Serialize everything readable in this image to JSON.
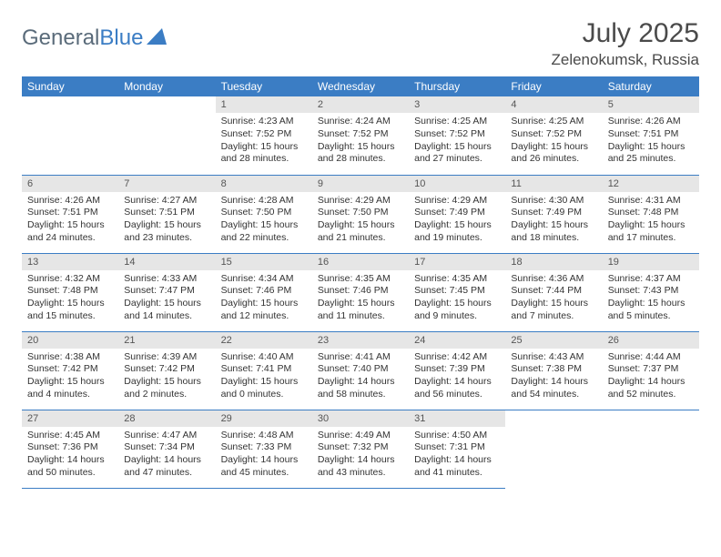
{
  "colors": {
    "header_bg": "#3b7dc4",
    "header_text": "#ffffff",
    "daynum_bg": "#e6e6e6",
    "daynum_text": "#555555",
    "body_text": "#333333",
    "divider": "#3b7dc4",
    "logo_gray": "#5a6b7a",
    "logo_blue": "#3b7dc4"
  },
  "logo": {
    "text1": "General",
    "text2": "Blue"
  },
  "title": "July 2025",
  "location": "Zelenokumsk, Russia",
  "weekdays": [
    "Sunday",
    "Monday",
    "Tuesday",
    "Wednesday",
    "Thursday",
    "Friday",
    "Saturday"
  ],
  "weeks": [
    [
      null,
      null,
      {
        "n": "1",
        "sr": "4:23 AM",
        "ss": "7:52 PM",
        "dl": "15 hours and 28 minutes."
      },
      {
        "n": "2",
        "sr": "4:24 AM",
        "ss": "7:52 PM",
        "dl": "15 hours and 28 minutes."
      },
      {
        "n": "3",
        "sr": "4:25 AM",
        "ss": "7:52 PM",
        "dl": "15 hours and 27 minutes."
      },
      {
        "n": "4",
        "sr": "4:25 AM",
        "ss": "7:52 PM",
        "dl": "15 hours and 26 minutes."
      },
      {
        "n": "5",
        "sr": "4:26 AM",
        "ss": "7:51 PM",
        "dl": "15 hours and 25 minutes."
      }
    ],
    [
      {
        "n": "6",
        "sr": "4:26 AM",
        "ss": "7:51 PM",
        "dl": "15 hours and 24 minutes."
      },
      {
        "n": "7",
        "sr": "4:27 AM",
        "ss": "7:51 PM",
        "dl": "15 hours and 23 minutes."
      },
      {
        "n": "8",
        "sr": "4:28 AM",
        "ss": "7:50 PM",
        "dl": "15 hours and 22 minutes."
      },
      {
        "n": "9",
        "sr": "4:29 AM",
        "ss": "7:50 PM",
        "dl": "15 hours and 21 minutes."
      },
      {
        "n": "10",
        "sr": "4:29 AM",
        "ss": "7:49 PM",
        "dl": "15 hours and 19 minutes."
      },
      {
        "n": "11",
        "sr": "4:30 AM",
        "ss": "7:49 PM",
        "dl": "15 hours and 18 minutes."
      },
      {
        "n": "12",
        "sr": "4:31 AM",
        "ss": "7:48 PM",
        "dl": "15 hours and 17 minutes."
      }
    ],
    [
      {
        "n": "13",
        "sr": "4:32 AM",
        "ss": "7:48 PM",
        "dl": "15 hours and 15 minutes."
      },
      {
        "n": "14",
        "sr": "4:33 AM",
        "ss": "7:47 PM",
        "dl": "15 hours and 14 minutes."
      },
      {
        "n": "15",
        "sr": "4:34 AM",
        "ss": "7:46 PM",
        "dl": "15 hours and 12 minutes."
      },
      {
        "n": "16",
        "sr": "4:35 AM",
        "ss": "7:46 PM",
        "dl": "15 hours and 11 minutes."
      },
      {
        "n": "17",
        "sr": "4:35 AM",
        "ss": "7:45 PM",
        "dl": "15 hours and 9 minutes."
      },
      {
        "n": "18",
        "sr": "4:36 AM",
        "ss": "7:44 PM",
        "dl": "15 hours and 7 minutes."
      },
      {
        "n": "19",
        "sr": "4:37 AM",
        "ss": "7:43 PM",
        "dl": "15 hours and 5 minutes."
      }
    ],
    [
      {
        "n": "20",
        "sr": "4:38 AM",
        "ss": "7:42 PM",
        "dl": "15 hours and 4 minutes."
      },
      {
        "n": "21",
        "sr": "4:39 AM",
        "ss": "7:42 PM",
        "dl": "15 hours and 2 minutes."
      },
      {
        "n": "22",
        "sr": "4:40 AM",
        "ss": "7:41 PM",
        "dl": "15 hours and 0 minutes."
      },
      {
        "n": "23",
        "sr": "4:41 AM",
        "ss": "7:40 PM",
        "dl": "14 hours and 58 minutes."
      },
      {
        "n": "24",
        "sr": "4:42 AM",
        "ss": "7:39 PM",
        "dl": "14 hours and 56 minutes."
      },
      {
        "n": "25",
        "sr": "4:43 AM",
        "ss": "7:38 PM",
        "dl": "14 hours and 54 minutes."
      },
      {
        "n": "26",
        "sr": "4:44 AM",
        "ss": "7:37 PM",
        "dl": "14 hours and 52 minutes."
      }
    ],
    [
      {
        "n": "27",
        "sr": "4:45 AM",
        "ss": "7:36 PM",
        "dl": "14 hours and 50 minutes."
      },
      {
        "n": "28",
        "sr": "4:47 AM",
        "ss": "7:34 PM",
        "dl": "14 hours and 47 minutes."
      },
      {
        "n": "29",
        "sr": "4:48 AM",
        "ss": "7:33 PM",
        "dl": "14 hours and 45 minutes."
      },
      {
        "n": "30",
        "sr": "4:49 AM",
        "ss": "7:32 PM",
        "dl": "14 hours and 43 minutes."
      },
      {
        "n": "31",
        "sr": "4:50 AM",
        "ss": "7:31 PM",
        "dl": "14 hours and 41 minutes."
      },
      null,
      null
    ]
  ],
  "labels": {
    "sunrise": "Sunrise: ",
    "sunset": "Sunset: ",
    "daylight": "Daylight: "
  }
}
